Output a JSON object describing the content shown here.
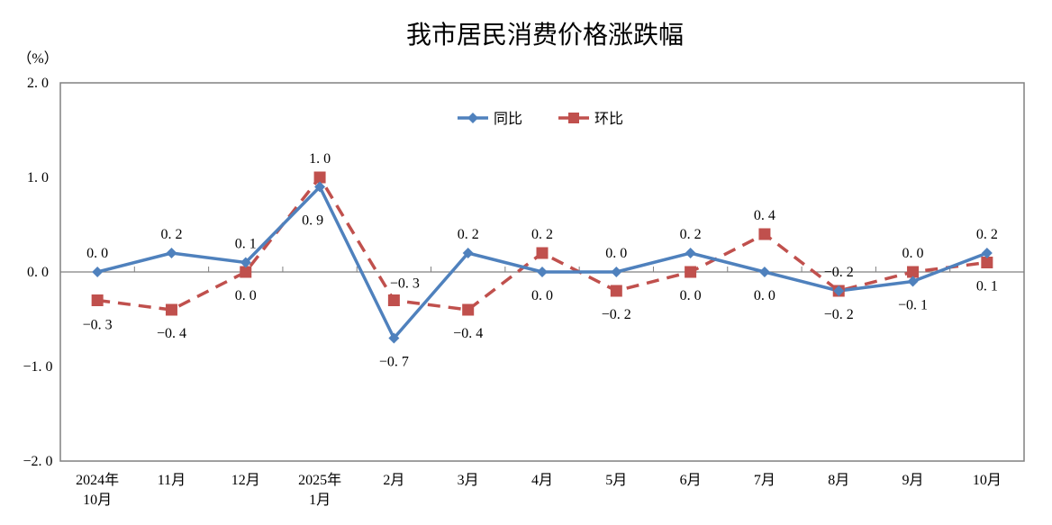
{
  "chart_data": {
    "type": "line",
    "title": "我市居民消费价格涨跌幅",
    "ylabel": "（%）",
    "xlabel": "",
    "ylim": [
      -2.0,
      2.0
    ],
    "yticks": [
      "2.0",
      "1.0",
      "0.0",
      "-1.0",
      "-2.0"
    ],
    "ytick_values": [
      2.0,
      1.0,
      0.0,
      -1.0,
      -2.0
    ],
    "grid": false,
    "legend_position": "top-center",
    "categories": [
      [
        "2024年",
        "10月"
      ],
      [
        "11月"
      ],
      [
        "12月"
      ],
      [
        "2025年",
        "1月"
      ],
      [
        "2月"
      ],
      [
        "3月"
      ],
      [
        "4月"
      ],
      [
        "5月"
      ],
      [
        "6月"
      ],
      [
        "7月"
      ],
      [
        "8月"
      ],
      [
        "9月"
      ],
      [
        "10月"
      ]
    ],
    "series": [
      {
        "name": "同比",
        "color": "#4F81BD",
        "marker": "diamond",
        "dash": "solid",
        "values": [
          0.0,
          0.2,
          0.1,
          0.9,
          -0.7,
          0.2,
          0.0,
          0.0,
          0.2,
          0.0,
          -0.2,
          -0.1,
          0.2
        ],
        "labels": [
          "0.0",
          "0.2",
          "0.1",
          "0.9",
          "-0.7",
          "0.2",
          "0.0",
          "0.0",
          "0.2",
          "0.0",
          "-0.2",
          "-0.1",
          "0.2"
        ],
        "label_pos": [
          "above",
          "above",
          "above",
          "right",
          "below",
          "above",
          "below",
          "above",
          "above",
          "below",
          "below",
          "below",
          "above"
        ]
      },
      {
        "name": "环比",
        "color": "#C0504D",
        "marker": "square",
        "dash": "dashed",
        "values": [
          -0.3,
          -0.4,
          0.0,
          1.0,
          -0.3,
          -0.4,
          0.2,
          -0.2,
          0.0,
          0.4,
          -0.2,
          0.0,
          0.1
        ],
        "labels": [
          "-0.3",
          "-0.4",
          "0.0",
          "1.0",
          "-0.3",
          "-0.4",
          "0.2",
          "-0.2",
          "0.0",
          "0.4",
          "-0.2",
          "0.0",
          "0.1"
        ],
        "label_pos": [
          "below",
          "below",
          "below",
          "above",
          "above",
          "below",
          "above",
          "below",
          "below",
          "above",
          "above",
          "above",
          "below"
        ]
      }
    ]
  }
}
